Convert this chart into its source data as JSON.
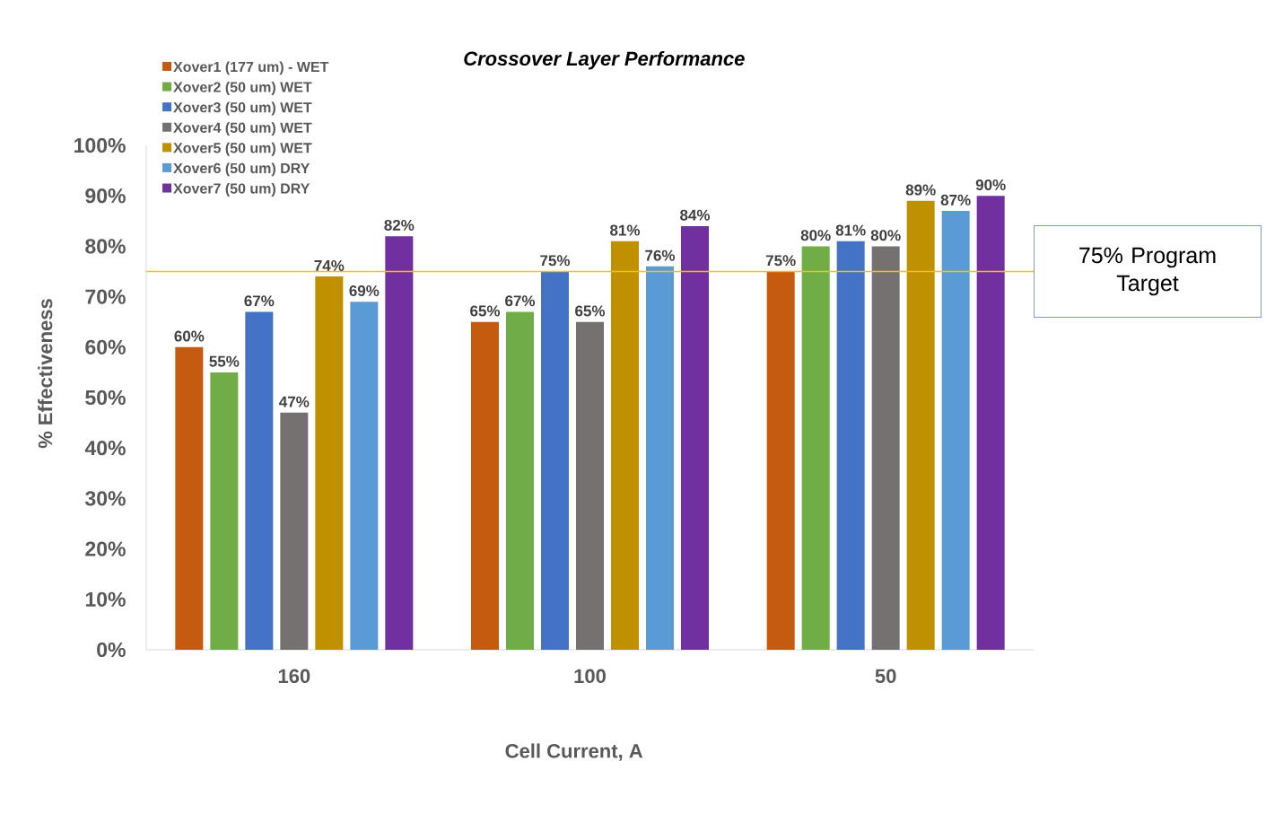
{
  "chart_data": {
    "type": "bar",
    "title": "Crossover Layer Performance",
    "xlabel": "Cell Current, A",
    "ylabel": "% Effectiveness",
    "categories": [
      "160",
      "100",
      "50"
    ],
    "series": [
      {
        "name": "Xover1 (177 um) - WET",
        "color": "#c55a11",
        "values": [
          60,
          65,
          75
        ],
        "value_labels": [
          "60%",
          "65%",
          "75%"
        ]
      },
      {
        "name": "Xover2 (50 um) WET",
        "color": "#70ad47",
        "values": [
          55,
          67,
          80
        ],
        "value_labels": [
          "55%",
          "67%",
          "80%"
        ]
      },
      {
        "name": "Xover3 (50 um) WET",
        "color": "#4472c4",
        "values": [
          67,
          75,
          81
        ],
        "value_labels": [
          "67%",
          "75%",
          "81%"
        ]
      },
      {
        "name": "Xover4 (50 um) WET",
        "color": "#767171",
        "values": [
          47,
          65,
          80
        ],
        "value_labels": [
          "47%",
          "65%",
          "80%"
        ]
      },
      {
        "name": "Xover5 (50 um) WET",
        "color": "#bf9000",
        "values": [
          74,
          81,
          89
        ],
        "value_labels": [
          "74%",
          "81%",
          "89%"
        ]
      },
      {
        "name": "Xover6 (50 um) DRY",
        "color": "#5b9bd5",
        "values": [
          69,
          76,
          87
        ],
        "value_labels": [
          "69%",
          "76%",
          "87%"
        ]
      },
      {
        "name": "Xover7 (50 um) DRY",
        "color": "#7030a0",
        "values": [
          82,
          84,
          90
        ],
        "value_labels": [
          "82%",
          "84%",
          "90%"
        ]
      }
    ],
    "ylim": [
      0,
      100
    ],
    "yticks": [
      {
        "value": 0,
        "label": "0%"
      },
      {
        "value": 10,
        "label": "10%"
      },
      {
        "value": 20,
        "label": "20%"
      },
      {
        "value": 30,
        "label": "30%"
      },
      {
        "value": 40,
        "label": "40%"
      },
      {
        "value": 50,
        "label": "50%"
      },
      {
        "value": 60,
        "label": "60%"
      },
      {
        "value": 70,
        "label": "70%"
      },
      {
        "value": 80,
        "label": "80%"
      },
      {
        "value": 90,
        "label": "90%"
      },
      {
        "value": 100,
        "label": "100%"
      }
    ],
    "ref_lines": [
      {
        "axis": "y",
        "value": 75,
        "label": "75% Program Target",
        "color": "#ffc000"
      }
    ],
    "legend": "top left"
  }
}
